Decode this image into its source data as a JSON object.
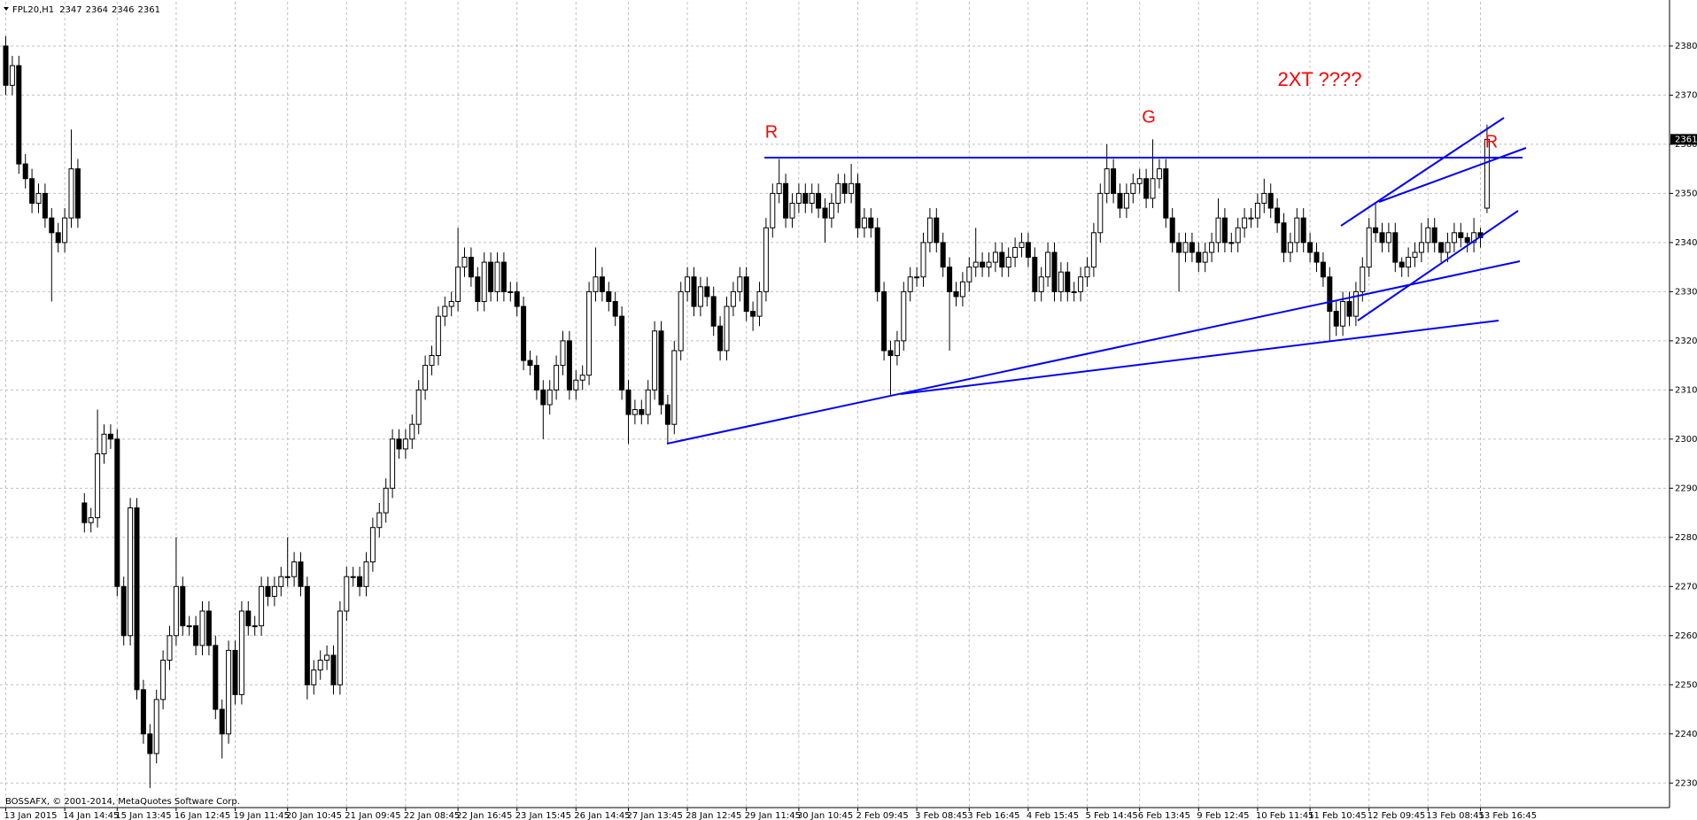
{
  "chart_data": {
    "type": "candlestick",
    "symbol": "FPL20,H1",
    "footer": "BOSSAFX, © 2001-2014, MetaQuotes Software Corp.",
    "annotations": [
      "R",
      "G",
      "2XT  ????",
      "R"
    ],
    "ylim": [
      2225,
      2389
    ],
    "yticks": [
      2230,
      2240,
      2250,
      2260,
      2270,
      2280,
      2290,
      2300,
      2310,
      2320,
      2330,
      2340,
      2350,
      2360,
      2370,
      2380
    ],
    "grid": true,
    "up_color": "#ffffff",
    "down_color": "#000000",
    "categories": [
      "13 Jan 2015",
      null,
      null,
      null,
      null,
      null,
      null,
      null,
      null,
      "14 Jan 14:45",
      null,
      null,
      null,
      null,
      null,
      null,
      null,
      "15 Jan 13:45",
      null,
      null,
      null,
      null,
      null,
      null,
      null,
      null,
      "16 Jan 12:45",
      null,
      null,
      null,
      null,
      null,
      null,
      null,
      null,
      "19 Jan 11:45",
      null,
      null,
      null,
      null,
      null,
      null,
      null,
      "20 Jan 10:45",
      null,
      null,
      null,
      null,
      null,
      null,
      null,
      null,
      "21 Jan 09:45",
      null,
      null,
      null,
      null,
      null,
      null,
      null,
      null,
      "22 Jan 08:45",
      null,
      null,
      null,
      null,
      null,
      null,
      null,
      "22 Jan 16:45",
      null,
      null,
      null,
      null,
      null,
      null,
      null,
      null,
      "23 Jan 15:45",
      null,
      null,
      null,
      null,
      null,
      null,
      null,
      null,
      "26 Jan 14:45",
      null,
      null,
      null,
      null,
      null,
      null,
      null,
      "27 Jan 13:45",
      null,
      null,
      null,
      null,
      null,
      null,
      null,
      null,
      "28 Jan 12:45",
      null,
      null,
      null,
      null,
      null,
      null,
      null,
      null,
      "29 Jan 11:45",
      null,
      null,
      null,
      null,
      null,
      null,
      null,
      "30 Jan 10:45",
      null,
      null,
      null,
      null,
      null,
      null,
      null,
      null,
      "2 Feb 09:45",
      null,
      null,
      null,
      null,
      null,
      null,
      null,
      null,
      "3 Feb 08:45",
      null,
      null,
      null,
      null,
      null,
      null,
      null,
      "3 Feb 16:45",
      null,
      null,
      null,
      null,
      null,
      null,
      null,
      null,
      "4 Feb 15:45",
      null,
      null,
      null,
      null,
      null,
      null,
      null,
      null,
      "5 Feb 14:45",
      null,
      null,
      null,
      null,
      null,
      null,
      null,
      "6 Feb 13:45",
      null,
      null,
      null,
      null,
      null,
      null,
      null,
      null,
      "9 Feb 12:45",
      null,
      null,
      null,
      null,
      null,
      null,
      null,
      null,
      "10 Feb 11:45",
      null,
      null,
      null,
      null,
      null,
      null,
      null,
      "11 Feb 10:45",
      null,
      null,
      null,
      null,
      null,
      null,
      null,
      null,
      "12 Feb 09:45",
      null,
      null,
      null,
      null,
      null,
      null,
      null,
      null,
      "13 Feb 08:45",
      null,
      null,
      null,
      null,
      null,
      null,
      null,
      "13 Feb 16:45",
      null
    ],
    "ohlc": [
      [
        2380,
        2382,
        2370,
        2372
      ],
      [
        2372,
        2378,
        2370,
        2376
      ],
      [
        2376,
        2378,
        2354,
        2356
      ],
      [
        2356,
        2358,
        2351,
        2353
      ],
      [
        2353,
        2355,
        2346,
        2348
      ],
      [
        2348,
        2352,
        2346,
        2350
      ],
      [
        2350,
        2352,
        2343,
        2345
      ],
      [
        2345,
        2347,
        2328,
        2342
      ],
      [
        2342,
        2344,
        2338,
        2340
      ],
      [
        2340,
        2347,
        2338,
        2345
      ],
      [
        2345,
        2363,
        2343,
        2355
      ],
      [
        2355,
        2357,
        2343,
        2345
      ],
      [
        2287,
        2289,
        2281,
        2283
      ],
      [
        2283,
        2286,
        2281,
        2284
      ],
      [
        2284,
        2306,
        2282,
        2297
      ],
      [
        2297,
        2303,
        2295,
        2301
      ],
      [
        2301,
        2303,
        2298,
        2300
      ],
      [
        2300,
        2302,
        2268,
        2270
      ],
      [
        2270,
        2272,
        2258,
        2260
      ],
      [
        2260,
        2288,
        2258,
        2286
      ],
      [
        2286,
        2288,
        2247,
        2249
      ],
      [
        2249,
        2251,
        2238,
        2240
      ],
      [
        2240,
        2242,
        2229,
        2236
      ],
      [
        2236,
        2249,
        2234,
        2247
      ],
      [
        2247,
        2257,
        2245,
        2255
      ],
      [
        2255,
        2262,
        2253,
        2260
      ],
      [
        2260,
        2280,
        2258,
        2270
      ],
      [
        2270,
        2272,
        2260,
        2262
      ],
      [
        2262,
        2264,
        2260,
        2262
      ],
      [
        2262,
        2264,
        2256,
        2258
      ],
      [
        2258,
        2267,
        2256,
        2265
      ],
      [
        2265,
        2267,
        2256,
        2258
      ],
      [
        2258,
        2260,
        2243,
        2245
      ],
      [
        2245,
        2247,
        2235,
        2240
      ],
      [
        2240,
        2259,
        2238,
        2257
      ],
      [
        2257,
        2259,
        2246,
        2248
      ],
      [
        2248,
        2267,
        2246,
        2265
      ],
      [
        2265,
        2267,
        2260,
        2262
      ],
      [
        2262,
        2264,
        2260,
        2262
      ],
      [
        2262,
        2272,
        2260,
        2270
      ],
      [
        2270,
        2272,
        2266,
        2268
      ],
      [
        2268,
        2272,
        2266,
        2270
      ],
      [
        2270,
        2274,
        2268,
        2272
      ],
      [
        2272,
        2280,
        2270,
        2272
      ],
      [
        2272,
        2277,
        2270,
        2275
      ],
      [
        2275,
        2277,
        2268,
        2270
      ],
      [
        2270,
        2272,
        2247,
        2250
      ],
      [
        2250,
        2255,
        2248,
        2253
      ],
      [
        2253,
        2257,
        2251,
        2255
      ],
      [
        2255,
        2258,
        2253,
        2256
      ],
      [
        2256,
        2258,
        2248,
        2250
      ],
      [
        2250,
        2267,
        2248,
        2265
      ],
      [
        2265,
        2274,
        2263,
        2272
      ],
      [
        2272,
        2274,
        2270,
        2272
      ],
      [
        2272,
        2274,
        2268,
        2270
      ],
      [
        2270,
        2277,
        2268,
        2275
      ],
      [
        2275,
        2284,
        2273,
        2282
      ],
      [
        2282,
        2287,
        2280,
        2285
      ],
      [
        2285,
        2292,
        2283,
        2290
      ],
      [
        2290,
        2302,
        2288,
        2300
      ],
      [
        2300,
        2302,
        2296,
        2298
      ],
      [
        2298,
        2302,
        2296,
        2300
      ],
      [
        2300,
        2305,
        2298,
        2303
      ],
      [
        2303,
        2312,
        2301,
        2310
      ],
      [
        2310,
        2317,
        2308,
        2315
      ],
      [
        2315,
        2319,
        2313,
        2317
      ],
      [
        2317,
        2327,
        2315,
        2325
      ],
      [
        2325,
        2329,
        2323,
        2327
      ],
      [
        2327,
        2330,
        2325,
        2328
      ],
      [
        2328,
        2343,
        2326,
        2335
      ],
      [
        2335,
        2339,
        2333,
        2337
      ],
      [
        2337,
        2339,
        2331,
        2333
      ],
      [
        2333,
        2335,
        2326,
        2328
      ],
      [
        2328,
        2338,
        2326,
        2336
      ],
      [
        2336,
        2338,
        2328,
        2330
      ],
      [
        2330,
        2338,
        2328,
        2336
      ],
      [
        2336,
        2338,
        2328,
        2330
      ],
      [
        2330,
        2332,
        2328,
        2330
      ],
      [
        2330,
        2332,
        2325,
        2327
      ],
      [
        2327,
        2329,
        2314,
        2316
      ],
      [
        2316,
        2318,
        2313,
        2315
      ],
      [
        2315,
        2317,
        2308,
        2310
      ],
      [
        2310,
        2312,
        2300,
        2307
      ],
      [
        2307,
        2312,
        2305,
        2310
      ],
      [
        2310,
        2317,
        2308,
        2315
      ],
      [
        2315,
        2322,
        2313,
        2320
      ],
      [
        2320,
        2322,
        2308,
        2310
      ],
      [
        2310,
        2314,
        2308,
        2312
      ],
      [
        2312,
        2315,
        2310,
        2313
      ],
      [
        2313,
        2332,
        2311,
        2330
      ],
      [
        2330,
        2339,
        2328,
        2333
      ],
      [
        2333,
        2335,
        2328,
        2330
      ],
      [
        2330,
        2332,
        2326,
        2328
      ],
      [
        2328,
        2330,
        2323,
        2325
      ],
      [
        2325,
        2327,
        2308,
        2310
      ],
      [
        2310,
        2312,
        2299,
        2305
      ],
      [
        2305,
        2308,
        2303,
        2306
      ],
      [
        2306,
        2308,
        2303,
        2305
      ],
      [
        2305,
        2312,
        2303,
        2310
      ],
      [
        2310,
        2324,
        2308,
        2322
      ],
      [
        2322,
        2324,
        2305,
        2307
      ],
      [
        2307,
        2309,
        2299,
        2303
      ],
      [
        2303,
        2320,
        2301,
        2318
      ],
      [
        2318,
        2332,
        2316,
        2330
      ],
      [
        2330,
        2335,
        2328,
        2333
      ],
      [
        2333,
        2335,
        2325,
        2327
      ],
      [
        2327,
        2333,
        2325,
        2331
      ],
      [
        2331,
        2333,
        2327,
        2329
      ],
      [
        2329,
        2331,
        2321,
        2323
      ],
      [
        2323,
        2325,
        2316,
        2318
      ],
      [
        2318,
        2329,
        2316,
        2327
      ],
      [
        2327,
        2332,
        2325,
        2330
      ],
      [
        2330,
        2335,
        2328,
        2333
      ],
      [
        2333,
        2335,
        2324,
        2326
      ],
      [
        2326,
        2328,
        2322,
        2325
      ],
      [
        2325,
        2332,
        2323,
        2330
      ],
      [
        2330,
        2345,
        2328,
        2343
      ],
      [
        2343,
        2352,
        2341,
        2350
      ],
      [
        2350,
        2357,
        2348,
        2352
      ],
      [
        2352,
        2354,
        2343,
        2345
      ],
      [
        2345,
        2350,
        2343,
        2348
      ],
      [
        2348,
        2352,
        2346,
        2350
      ],
      [
        2350,
        2352,
        2346,
        2348
      ],
      [
        2348,
        2352,
        2346,
        2350
      ],
      [
        2350,
        2352,
        2345,
        2347
      ],
      [
        2347,
        2349,
        2340,
        2345
      ],
      [
        2345,
        2350,
        2343,
        2348
      ],
      [
        2348,
        2354,
        2346,
        2352
      ],
      [
        2352,
        2354,
        2348,
        2350
      ],
      [
        2350,
        2356,
        2348,
        2352
      ],
      [
        2352,
        2354,
        2341,
        2343
      ],
      [
        2343,
        2347,
        2341,
        2345
      ],
      [
        2345,
        2347,
        2341,
        2343
      ],
      [
        2343,
        2345,
        2328,
        2330
      ],
      [
        2330,
        2332,
        2316,
        2318
      ],
      [
        2318,
        2320,
        2309,
        2317
      ],
      [
        2317,
        2322,
        2315,
        2320
      ],
      [
        2320,
        2332,
        2318,
        2330
      ],
      [
        2330,
        2335,
        2328,
        2333
      ],
      [
        2333,
        2335,
        2331,
        2333
      ],
      [
        2333,
        2342,
        2331,
        2340
      ],
      [
        2340,
        2347,
        2338,
        2345
      ],
      [
        2345,
        2347,
        2338,
        2340
      ],
      [
        2340,
        2342,
        2333,
        2335
      ],
      [
        2335,
        2337,
        2318,
        2330
      ],
      [
        2330,
        2332,
        2327,
        2329
      ],
      [
        2329,
        2334,
        2327,
        2332
      ],
      [
        2332,
        2337,
        2330,
        2335
      ],
      [
        2335,
        2343,
        2333,
        2336
      ],
      [
        2336,
        2338,
        2333,
        2335
      ],
      [
        2335,
        2338,
        2333,
        2336
      ],
      [
        2336,
        2340,
        2334,
        2338
      ],
      [
        2338,
        2340,
        2333,
        2335
      ],
      [
        2335,
        2339,
        2333,
        2337
      ],
      [
        2337,
        2341,
        2335,
        2339
      ],
      [
        2339,
        2342,
        2337,
        2340
      ],
      [
        2340,
        2342,
        2335,
        2337
      ],
      [
        2337,
        2339,
        2328,
        2330
      ],
      [
        2330,
        2335,
        2328,
        2333
      ],
      [
        2333,
        2340,
        2331,
        2338
      ],
      [
        2338,
        2340,
        2328,
        2330
      ],
      [
        2330,
        2336,
        2328,
        2334
      ],
      [
        2334,
        2336,
        2328,
        2330
      ],
      [
        2330,
        2332,
        2328,
        2330
      ],
      [
        2330,
        2335,
        2328,
        2333
      ],
      [
        2333,
        2337,
        2331,
        2335
      ],
      [
        2335,
        2344,
        2333,
        2342
      ],
      [
        2342,
        2352,
        2340,
        2350
      ],
      [
        2350,
        2360,
        2348,
        2355
      ],
      [
        2355,
        2357,
        2348,
        2350
      ],
      [
        2350,
        2352,
        2345,
        2347
      ],
      [
        2347,
        2352,
        2345,
        2350
      ],
      [
        2350,
        2354,
        2348,
        2352
      ],
      [
        2352,
        2355,
        2350,
        2353
      ],
      [
        2353,
        2355,
        2347,
        2349
      ],
      [
        2349,
        2361,
        2347,
        2353
      ],
      [
        2353,
        2357,
        2351,
        2355
      ],
      [
        2355,
        2357,
        2343,
        2345
      ],
      [
        2345,
        2347,
        2338,
        2340
      ],
      [
        2340,
        2342,
        2330,
        2338
      ],
      [
        2338,
        2342,
        2336,
        2340
      ],
      [
        2340,
        2342,
        2336,
        2338
      ],
      [
        2338,
        2340,
        2334,
        2336
      ],
      [
        2336,
        2340,
        2334,
        2338
      ],
      [
        2338,
        2342,
        2336,
        2340
      ],
      [
        2340,
        2349,
        2338,
        2345
      ],
      [
        2345,
        2347,
        2338,
        2340
      ],
      [
        2340,
        2342,
        2338,
        2340
      ],
      [
        2340,
        2345,
        2338,
        2343
      ],
      [
        2343,
        2347,
        2341,
        2345
      ],
      [
        2345,
        2347,
        2343,
        2345
      ],
      [
        2345,
        2350,
        2343,
        2348
      ],
      [
        2348,
        2353,
        2346,
        2350
      ],
      [
        2350,
        2352,
        2345,
        2347
      ],
      [
        2347,
        2349,
        2342,
        2344
      ],
      [
        2344,
        2346,
        2336,
        2338
      ],
      [
        2338,
        2342,
        2336,
        2340
      ],
      [
        2340,
        2347,
        2338,
        2345
      ],
      [
        2345,
        2347,
        2338,
        2340
      ],
      [
        2340,
        2342,
        2336,
        2338
      ],
      [
        2338,
        2340,
        2334,
        2336
      ],
      [
        2336,
        2338,
        2331,
        2333
      ],
      [
        2333,
        2335,
        2320,
        2326
      ],
      [
        2326,
        2328,
        2321,
        2323
      ],
      [
        2323,
        2330,
        2321,
        2328
      ],
      [
        2328,
        2330,
        2323,
        2325
      ],
      [
        2325,
        2332,
        2323,
        2330
      ],
      [
        2330,
        2337,
        2328,
        2335
      ],
      [
        2335,
        2345,
        2333,
        2343
      ],
      [
        2343,
        2348,
        2340,
        2342
      ],
      [
        2342,
        2344,
        2338,
        2340
      ],
      [
        2340,
        2344,
        2338,
        2342
      ],
      [
        2342,
        2344,
        2334,
        2336
      ],
      [
        2336,
        2337,
        2333,
        2335
      ],
      [
        2335,
        2339,
        2333,
        2337
      ],
      [
        2337,
        2340,
        2335,
        2338
      ],
      [
        2338,
        2344,
        2336,
        2340
      ],
      [
        2340,
        2345,
        2338,
        2343
      ],
      [
        2343,
        2345,
        2338,
        2340
      ],
      [
        2340,
        2340,
        2336,
        2338
      ],
      [
        2338,
        2342,
        2336,
        2340
      ],
      [
        2340,
        2344,
        2338,
        2342
      ],
      [
        2342,
        2344,
        2339,
        2341
      ],
      [
        2341,
        2342,
        2338,
        2340
      ],
      [
        2340,
        2345,
        2338,
        2342
      ],
      [
        2342,
        2343,
        2339,
        2341
      ],
      [
        2347,
        2364,
        2346,
        2361
      ]
    ]
  }
}
